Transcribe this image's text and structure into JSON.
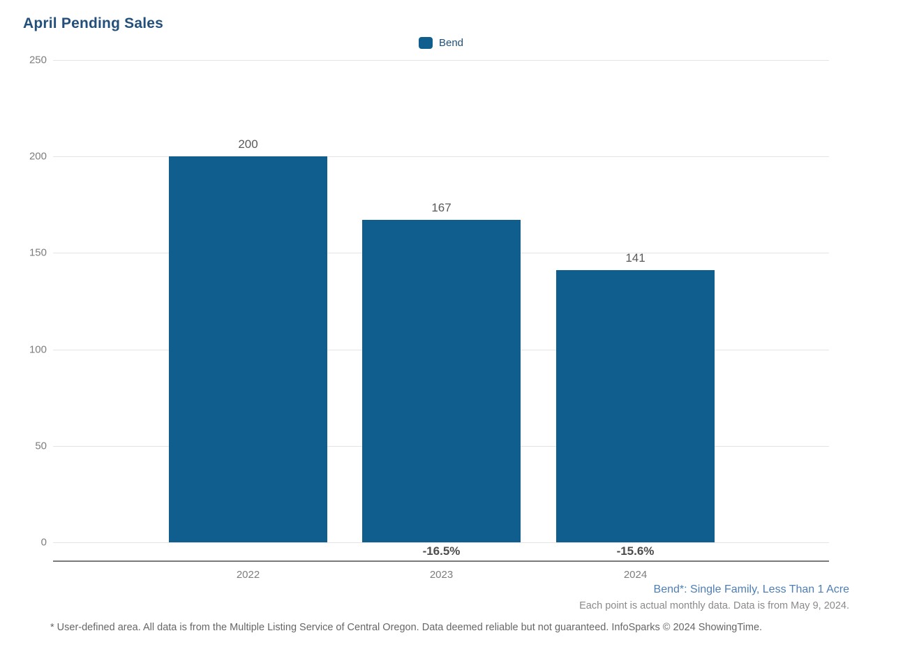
{
  "page": {
    "title": "April Pending Sales"
  },
  "legend": {
    "items": [
      {
        "label": "Bend",
        "color": "#105e8d"
      }
    ]
  },
  "chart_data": {
    "type": "bar",
    "title": "April Pending Sales",
    "categories": [
      "2022",
      "2023",
      "2024"
    ],
    "series": [
      {
        "name": "Bend",
        "values": [
          200,
          167,
          141
        ],
        "color": "#105e8d"
      }
    ],
    "bar_value_labels": [
      "200",
      "167",
      "141"
    ],
    "pct_change_labels": [
      "",
      "-16.5%",
      "-15.6%"
    ],
    "ylim": [
      0,
      250
    ],
    "yticks": [
      0,
      50,
      100,
      150,
      200,
      250
    ],
    "xlabel": "",
    "ylabel": "",
    "grid": "horizontal",
    "legend_position": "top-center"
  },
  "footnotes": {
    "series_definition": "Bend*: Single Family, Less Than 1 Acre",
    "data_note": "Each point is actual monthly data. Data is from May 9, 2024.",
    "disclaimer": "* User-defined area. All data is from the Multiple Listing Service of Central Oregon. Data deemed reliable but not guaranteed. InfoSparks © 2024 ShowingTime."
  },
  "colors": {
    "bar": "#105e8d",
    "title": "#23507b",
    "legend_text": "#1d4e78",
    "series_footnote": "#4d7eb5",
    "gridline": "#e4e4e4",
    "axis_line": "#7a7a7a",
    "tick_text": "#7d7d7d",
    "value_text": "#595959",
    "pct_text": "#4c4c4c"
  }
}
